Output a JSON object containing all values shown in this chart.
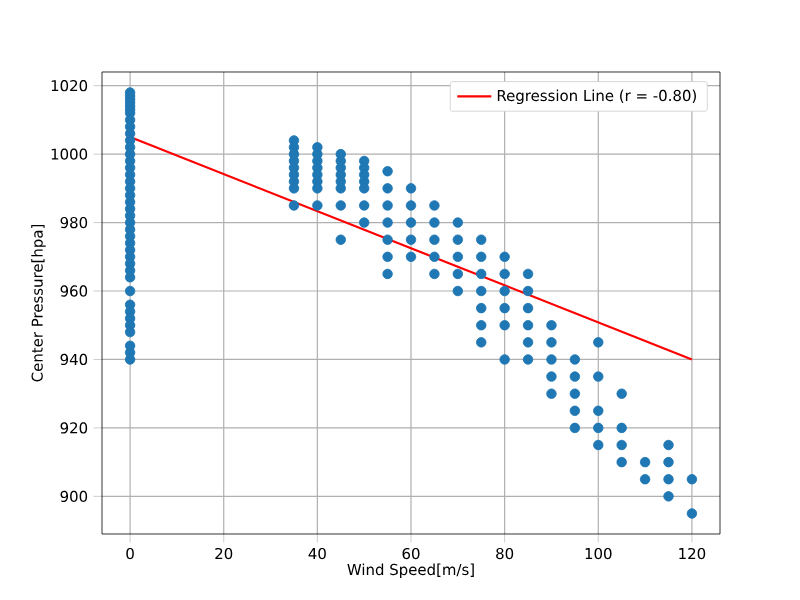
{
  "chart_data": {
    "type": "scatter",
    "xlabel": "Wind Speed[m/s]",
    "ylabel": "Center Pressure[hpa]",
    "xlim": [
      -6,
      126
    ],
    "ylim": [
      889,
      1024
    ],
    "xticks": [
      0,
      20,
      40,
      60,
      80,
      100,
      120
    ],
    "yticks": [
      900,
      920,
      940,
      960,
      980,
      1000,
      1020
    ],
    "grid": true,
    "legend": "top right",
    "marker": "circle",
    "series": [
      {
        "color": "#1f77b4",
        "x": [
          0,
          0,
          0,
          0,
          0,
          0,
          0,
          0,
          0,
          0,
          0,
          0,
          0,
          0,
          0,
          0,
          0,
          0,
          0,
          0,
          0,
          0,
          0,
          0,
          0,
          0,
          0,
          0,
          0,
          0,
          0,
          0,
          0,
          0,
          0,
          0,
          0,
          0,
          0,
          0,
          35,
          35,
          35,
          35,
          35,
          35,
          35,
          35,
          35,
          40,
          40,
          40,
          40,
          40,
          40,
          40,
          40,
          45,
          45,
          45,
          45,
          45,
          45,
          45,
          45,
          50,
          50,
          50,
          50,
          50,
          50,
          50,
          55,
          55,
          55,
          55,
          55,
          55,
          55,
          60,
          60,
          60,
          60,
          60,
          65,
          65,
          65,
          65,
          65,
          70,
          70,
          70,
          70,
          70,
          75,
          75,
          75,
          75,
          75,
          75,
          75,
          80,
          80,
          80,
          80,
          80,
          80,
          85,
          85,
          85,
          85,
          85,
          85,
          90,
          90,
          90,
          90,
          90,
          95,
          95,
          95,
          95,
          95,
          100,
          100,
          100,
          100,
          100,
          105,
          105,
          105,
          105,
          110,
          110,
          115,
          115,
          115,
          115,
          120,
          120
        ],
        "values": [
          1018,
          1016,
          1014,
          1012,
          1010,
          1008,
          1006,
          1004,
          1002,
          1000,
          998,
          996,
          994,
          992,
          990,
          988,
          986,
          984,
          982,
          980,
          978,
          976,
          974,
          972,
          970,
          968,
          966,
          964,
          960,
          956,
          954,
          952,
          950,
          948,
          944,
          942,
          940,
          1017,
          1015,
          1013,
          1004,
          1002,
          1000,
          998,
          996,
          994,
          992,
          990,
          985,
          1002,
          1000,
          998,
          996,
          994,
          992,
          990,
          985,
          1000,
          998,
          996,
          994,
          992,
          990,
          985,
          975,
          998,
          996,
          994,
          992,
          990,
          985,
          980,
          995,
          990,
          985,
          980,
          975,
          970,
          965,
          990,
          985,
          980,
          975,
          970,
          985,
          980,
          975,
          970,
          965,
          980,
          975,
          970,
          965,
          960,
          975,
          970,
          965,
          960,
          955,
          950,
          945,
          970,
          965,
          960,
          955,
          950,
          940,
          965,
          960,
          955,
          950,
          945,
          940,
          950,
          945,
          940,
          935,
          930,
          940,
          935,
          930,
          925,
          920,
          945,
          935,
          925,
          920,
          915,
          930,
          920,
          915,
          910,
          910,
          905,
          915,
          910,
          905,
          900,
          905,
          895
        ]
      },
      {
        "type": "line",
        "name": "Regression Line (r = -0.80)",
        "color": "#ff0000",
        "marker": "none",
        "line_style": "solid",
        "x": [
          0,
          120
        ],
        "values": [
          1005,
          940
        ]
      }
    ]
  }
}
